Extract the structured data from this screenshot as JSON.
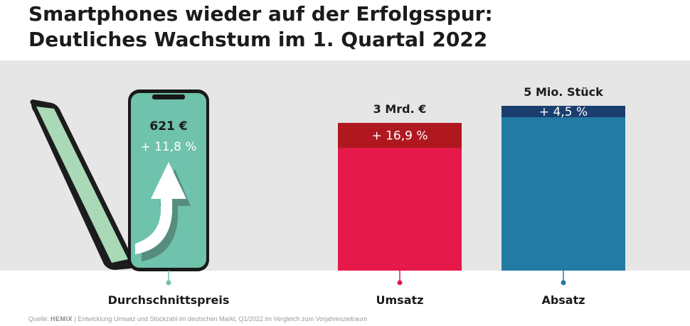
{
  "title_line1": "Smartphones wieder auf der Erfolgsspur:",
  "title_line2": "Deutliches Wachstum im 1. Quartal 2022",
  "source": {
    "prefix": "Quelle:",
    "brand": "HEMIX",
    "text": "| Entwicklung Umsatz und Stückzahl im deutschen Markt, Q1/2022 im Vergleich zum Vorjahreszeitraum"
  },
  "chart_data": {
    "type": "bar",
    "categories": [
      "Durchschnittspreis",
      "Umsatz",
      "Absatz"
    ],
    "items": [
      {
        "category": "Durchschnittspreis",
        "value_label": "621 €",
        "growth_label": "+ 11,8 %",
        "growth_pct": 11.8,
        "base_color": "#6fc2ac",
        "growth_color": "#ffffff",
        "marker_color": "#6fc2ac"
      },
      {
        "category": "Umsatz",
        "value_label": "3 Mrd. €",
        "growth_label": "+ 16,9 %",
        "growth_pct": 16.9,
        "base_color": "#e5194a",
        "growth_color": "#b0181f",
        "marker_color": "#e5194a"
      },
      {
        "category": "Absatz",
        "value_label": "5 Mio. Stück",
        "growth_label": "+ 4,5 %",
        "growth_pct": 4.5,
        "base_color": "#237aa3",
        "growth_color": "#1a3e6e",
        "marker_color": "#237aa3"
      }
    ]
  }
}
